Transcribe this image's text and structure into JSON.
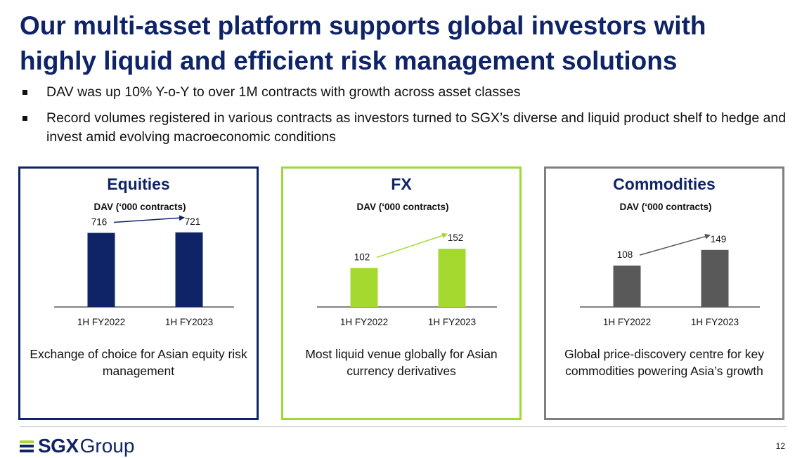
{
  "title": "Our multi-asset platform supports global investors with highly liquid and efficient risk management solutions",
  "bullets": [
    "DAV was up 10% Y-o-Y to over 1M contracts with growth across asset classes",
    "Record volumes registered in various contracts as investors turned to SGX’s diverse and liquid product shelf to hedge and invest amid evolving macroeconomic conditions"
  ],
  "colors": {
    "title": "#0f2466",
    "equities": "#0f2466",
    "fx": "#a4d930",
    "commodities": "#595959",
    "fx_border": "#9ed93b",
    "commodities_border": "#7f7f7f"
  },
  "panels": [
    {
      "title": "Equities",
      "caption": "Exchange of choice for Asian equity risk management"
    },
    {
      "title": "FX",
      "caption": "Most liquid venue globally for Asian currency derivatives"
    },
    {
      "title": "Commodities",
      "caption": "Global price-discovery centre for key commodities powering Asia’s growth"
    }
  ],
  "chart_data": [
    {
      "type": "bar",
      "title": "DAV (‘000 contracts)",
      "categories": [
        "1H FY2022",
        "1H FY2023"
      ],
      "values": [
        716,
        721
      ],
      "color": "#0f2466",
      "ylim": [
        0,
        740
      ]
    },
    {
      "type": "bar",
      "title": "DAV (‘000 contracts)",
      "categories": [
        "1H FY2022",
        "1H FY2023"
      ],
      "values": [
        102,
        152
      ],
      "color": "#a4d930",
      "ylim": [
        0,
        200
      ]
    },
    {
      "type": "bar",
      "title": "DAV (‘000 contracts)",
      "categories": [
        "1H FY2022",
        "1H FY2023"
      ],
      "values": [
        108,
        149
      ],
      "color": "#595959",
      "ylim": [
        0,
        200
      ]
    }
  ],
  "footer": {
    "logo_bold": "SGX",
    "logo_regular": "Group",
    "page_number": "12"
  }
}
